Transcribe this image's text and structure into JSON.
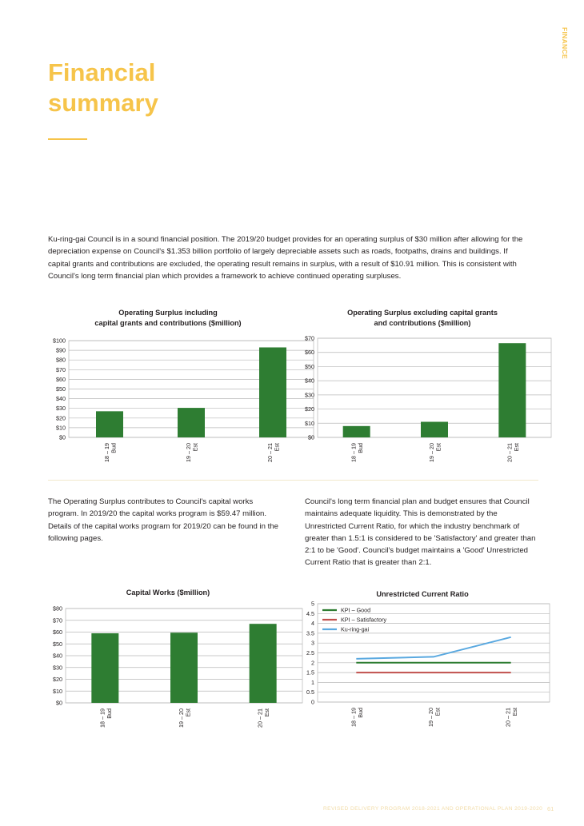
{
  "section_tag": "FINANCE",
  "title_line1": "Financial",
  "title_line2": "summary",
  "intro": "Ku-ring-gai Council is in a sound financial position. The 2019/20 budget provides for an operating surplus of $30 million after allowing for the depreciation expense on Council's $1.353 billion portfolio of largely depreciable assets such as roads, footpaths, drains and buildings. If capital grants and contributions are excluded, the operating result remains in surplus, with a result of $10.91 million. This is consistent with Council's long term financial plan which provides a framework to achieve continued operating surpluses.",
  "left_text": "The Operating Surplus contributes to Council's capital works program. In 2019/20 the capital works program is $59.47 million. Details of the capital works program for 2019/20 can be found in the following pages.",
  "right_text": "Council's long term financial plan and budget ensures that Council maintains adequate liquidity. This is demonstrated by the Unrestricted Current Ratio, for which the industry benchmark of greater than 1.5:1 is considered to be 'Satisfactory' and greater than 2:1 to be 'Good'. Council's budget maintains a 'Good' Unrestricted Current Ratio that is greater than 2:1.",
  "footer": "REVISED DELIVERY PROGRAM 2018-2021 AND OPERATIONAL PLAN 2019-2020",
  "page_number": "61",
  "colors": {
    "accent": "#f6c44a",
    "bar": "#2e7d32",
    "good": "#2e7d32",
    "satisfactory": "#c0504d",
    "kuringgai": "#5aa9e0"
  },
  "chart_data": [
    {
      "type": "bar",
      "title_line1": "Operating Surplus including",
      "title_line2": "capital grants and contributions ($million)",
      "categories": [
        [
          "18 – 19",
          "Bud"
        ],
        [
          "19 – 20",
          "Est"
        ],
        [
          "20 – 21",
          "Est"
        ]
      ],
      "values": [
        27,
        30.5,
        93
      ],
      "ylim": [
        0,
        100
      ],
      "yticks": [
        "$0",
        "$10",
        "$20",
        "$30",
        "$40",
        "$50",
        "$60",
        "$70",
        "$80",
        "$90",
        "$100"
      ],
      "grid": true
    },
    {
      "type": "bar",
      "title_line1": "Operating Surplus excluding capital grants",
      "title_line2": "and contributions ($million)",
      "categories": [
        [
          "18 – 19",
          "Bud"
        ],
        [
          "19 – 20",
          "Est"
        ],
        [
          "20 – 21",
          "Est"
        ]
      ],
      "values": [
        8,
        11,
        66.5
      ],
      "ylim": [
        0,
        70
      ],
      "yticks": [
        "$0",
        "$10",
        "$20",
        "$30",
        "$40",
        "$50",
        "$60",
        "$70"
      ],
      "grid": true
    },
    {
      "type": "bar",
      "title_line1": "Capital Works ($million)",
      "title_line2": "",
      "categories": [
        [
          "18 – 19",
          "Bud"
        ],
        [
          "19 – 20",
          "Est"
        ],
        [
          "20 – 21",
          "Est"
        ]
      ],
      "values": [
        59,
        59.5,
        67
      ],
      "ylim": [
        0,
        80
      ],
      "yticks": [
        "$0",
        "$10",
        "$20",
        "$30",
        "$40",
        "$50",
        "$60",
        "$70",
        "$80"
      ],
      "grid": true
    },
    {
      "type": "line",
      "title_line1": "Unrestricted Current Ratio",
      "title_line2": "",
      "categories": [
        [
          "18 – 19",
          "Bud"
        ],
        [
          "19 – 20",
          "Est"
        ],
        [
          "20 – 21",
          "Est"
        ]
      ],
      "ylim": [
        0,
        5
      ],
      "yticks": [
        "0",
        "0.5",
        "1",
        "1.5",
        "2",
        "2.5",
        "3",
        "3.5",
        "4",
        "4.5",
        "5"
      ],
      "grid": true,
      "legend_position": "top-left",
      "series": [
        {
          "name": "KPI  – Good",
          "values": [
            2,
            2,
            2
          ],
          "color": "#2e7d32"
        },
        {
          "name": "KPI – Satisfactory",
          "values": [
            1.5,
            1.5,
            1.5
          ],
          "color": "#c0504d"
        },
        {
          "name": "Ku-ring-gai",
          "values": [
            2.2,
            2.3,
            3.3
          ],
          "color": "#5aa9e0"
        }
      ]
    }
  ]
}
